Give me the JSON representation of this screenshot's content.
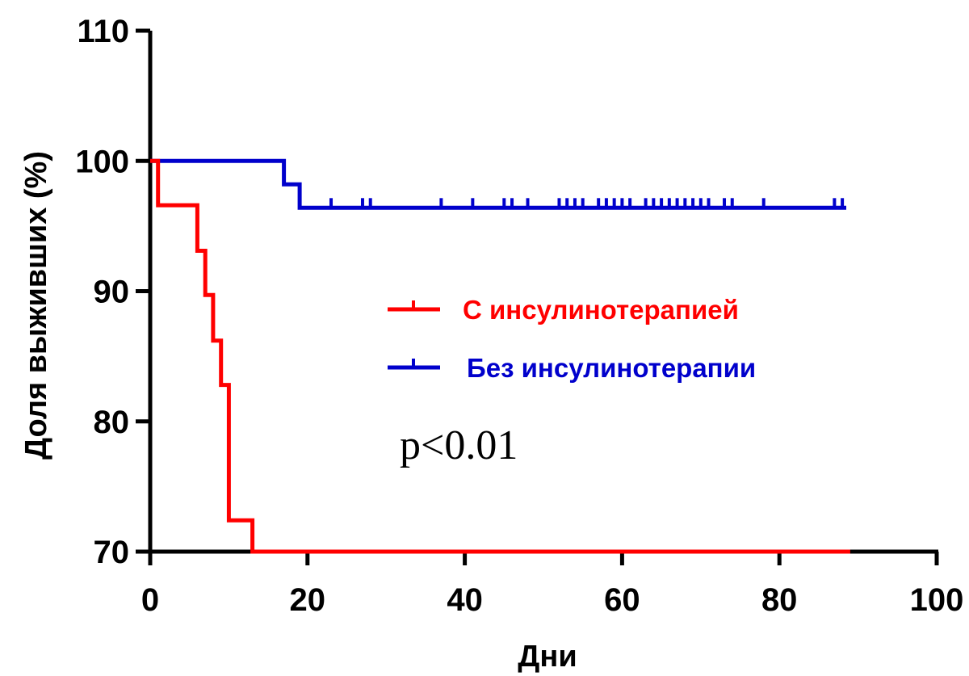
{
  "chart_data": {
    "type": "line",
    "title": "",
    "xlabel": "Дни",
    "ylabel": "Доля выживших (%)",
    "xlim": [
      0,
      100
    ],
    "ylim": [
      70,
      110
    ],
    "x_ticks": [
      "0",
      "20",
      "40",
      "60",
      "80",
      "100"
    ],
    "y_ticks": [
      "70",
      "80",
      "90",
      "100",
      "110"
    ],
    "grid": false,
    "legend_position": "center-right",
    "annotation": "p<0.01",
    "series": [
      {
        "name": "С инсулинотерапией",
        "color": "#ff0000",
        "step_points": [
          [
            0,
            100
          ],
          [
            1,
            100
          ],
          [
            1,
            96.6
          ],
          [
            6,
            96.6
          ],
          [
            6,
            93.1
          ],
          [
            7,
            93.1
          ],
          [
            7,
            89.7
          ],
          [
            8,
            89.7
          ],
          [
            8,
            86.2
          ],
          [
            9,
            86.2
          ],
          [
            9,
            82.8
          ],
          [
            10,
            82.8
          ],
          [
            10,
            72.4
          ],
          [
            13,
            72.4
          ],
          [
            13,
            70
          ],
          [
            89,
            70
          ]
        ],
        "censor_times": []
      },
      {
        "name": "Без инсулинотерапии",
        "color": "#0000cc",
        "step_points": [
          [
            0,
            100
          ],
          [
            17,
            100
          ],
          [
            17,
            98.2
          ],
          [
            19,
            98.2
          ],
          [
            19,
            96.4
          ],
          [
            88.5,
            96.4
          ]
        ],
        "censor_times": [
          23,
          27,
          28,
          37,
          41,
          45,
          46,
          48,
          52,
          53,
          54,
          55,
          57,
          58,
          59,
          60,
          61,
          63,
          64,
          65,
          66,
          67,
          68,
          69,
          70,
          71,
          73,
          74,
          78,
          87,
          88
        ]
      }
    ]
  }
}
